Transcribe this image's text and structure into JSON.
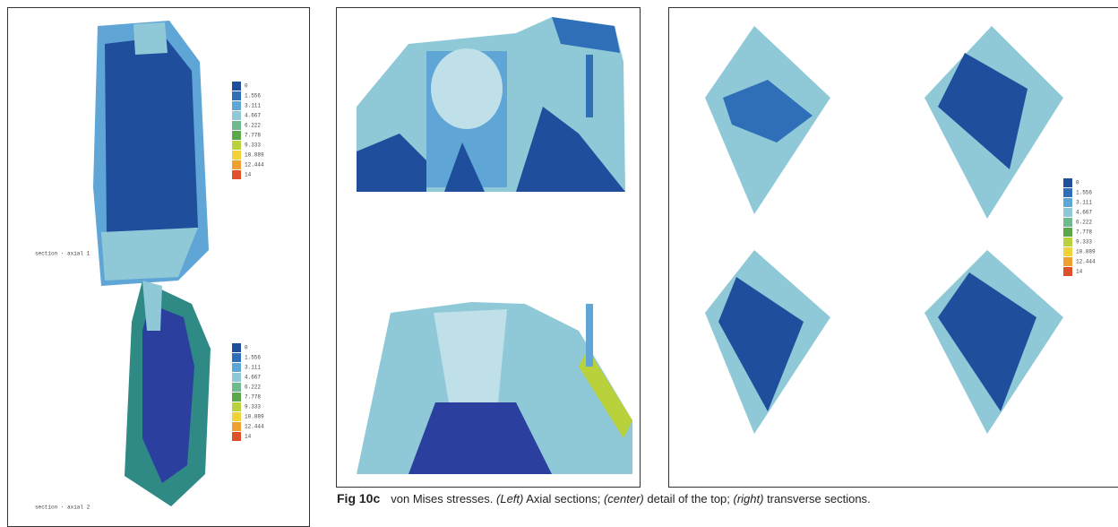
{
  "caption": {
    "label": "Fig 10c",
    "segments": [
      {
        "text": "von Mises stresses. ",
        "italic": false
      },
      {
        "text": "(Left)",
        "italic": true
      },
      {
        "text": " Axial sections; ",
        "italic": false
      },
      {
        "text": "(center)",
        "italic": true
      },
      {
        "text": " detail of the top; ",
        "italic": false
      },
      {
        "text": "(right)",
        "italic": true
      },
      {
        "text": " transverse sections.",
        "italic": false
      }
    ]
  },
  "legends": [
    {
      "labels": [
        "0",
        "1.556",
        "3.111",
        "4.667",
        "6.222",
        "7.778",
        "9.333",
        "10.889",
        "12.444",
        "14"
      ]
    },
    {
      "labels": [
        "0",
        "1.556",
        "3.111",
        "4.667",
        "6.222",
        "7.778",
        "9.333",
        "10.889",
        "12.444",
        "14"
      ]
    },
    {
      "labels": [
        "0",
        "1.556",
        "3.111",
        "4.667",
        "6.222",
        "7.778",
        "9.333",
        "10.889",
        "12.444",
        "14"
      ]
    }
  ]
}
